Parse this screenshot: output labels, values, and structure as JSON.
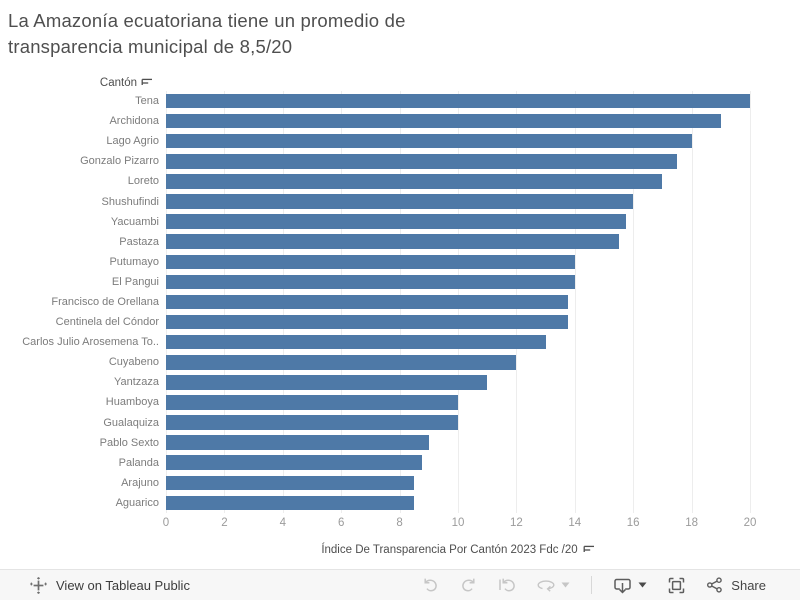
{
  "header": {
    "title_line1": "La Amazonía ecuatoriana tiene un promedio de",
    "title_line2": "transparencia municipal de 8,5/20"
  },
  "chart_data": {
    "type": "bar",
    "orientation": "horizontal",
    "title": "La Amazonía ecuatoriana tiene un promedio de transparencia municipal de 8,5/20",
    "row_header": "Cantón",
    "xlabel": "Índice De Transparencia Por Cantón 2023 Fdc /20",
    "categories": [
      "Tena",
      "Archidona",
      "Lago Agrio",
      "Gonzalo Pizarro",
      "Loreto",
      "Shushufindi",
      "Yacuambi",
      "Pastaza",
      "Putumayo",
      "El Pangui",
      "Francisco de Orellana",
      "Centinela del Cóndor",
      "Carlos Julio Arosemena To..",
      "Cuyabeno",
      "Yantzaza",
      "Huamboya",
      "Gualaquiza",
      "Pablo Sexto",
      "Palanda",
      "Arajuno",
      "Aguarico"
    ],
    "values": [
      20,
      19,
      18,
      17.5,
      17,
      16,
      15.75,
      15.5,
      14,
      14,
      13.75,
      13.75,
      13,
      12,
      11,
      10,
      10,
      9,
      8.75,
      8.5,
      8.5
    ],
    "xticks": [
      0,
      2,
      4,
      6,
      8,
      10,
      12,
      14,
      16,
      18,
      20
    ],
    "xlim": [
      0,
      20
    ],
    "grid": true,
    "legend": "none",
    "bar_color": "#4e79a7",
    "sorted": "descending"
  },
  "footer": {
    "view_label": "View on Tableau Public",
    "share_label": "Share",
    "toolbar": [
      {
        "name": "undo",
        "enabled": false
      },
      {
        "name": "redo",
        "enabled": false
      },
      {
        "name": "replay",
        "enabled": false
      },
      {
        "name": "refresh",
        "enabled": false
      },
      {
        "name": "download",
        "enabled": true
      },
      {
        "name": "fullscreen",
        "enabled": true
      },
      {
        "name": "share",
        "enabled": true
      }
    ]
  },
  "colors": {
    "bar": "#4e79a7",
    "gridline": "#ededed",
    "title_text": "#4f4f4f",
    "label_text": "#7c7c7c",
    "tick_text": "#9b9b9b",
    "footer_bg": "#f7f7f7",
    "icon_disabled": "#c6c6c6",
    "icon_enabled": "#5d5d5d"
  }
}
